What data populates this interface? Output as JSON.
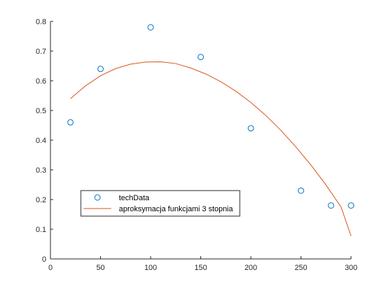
{
  "chart_data": {
    "type": "scatter",
    "title": "",
    "xlabel": "",
    "ylabel": "",
    "xlim": [
      0,
      300
    ],
    "ylim": [
      0,
      0.8
    ],
    "xticks": [
      0,
      50,
      100,
      150,
      200,
      250,
      300
    ],
    "yticks": [
      0,
      0.1,
      0.2,
      0.3,
      0.4,
      0.5,
      0.6,
      0.7,
      0.8
    ],
    "xtick_labels": [
      "0",
      "50",
      "100",
      "150",
      "200",
      "250",
      "300"
    ],
    "ytick_labels": [
      "0",
      "0.1",
      "0.2",
      "0.3",
      "0.4",
      "0.5",
      "0.6",
      "0.7",
      "0.8"
    ],
    "grid": false,
    "legend_position": "bottom-left",
    "series": [
      {
        "name": "techData",
        "type": "scatter",
        "marker": "circle-open",
        "color": "#0072BD",
        "x": [
          20,
          50,
          100,
          150,
          200,
          250,
          280,
          300
        ],
        "y": [
          0.46,
          0.64,
          0.78,
          0.68,
          0.44,
          0.23,
          0.18,
          0.18
        ]
      },
      {
        "name": "aproksymacja funkcjami 3 stopnia",
        "type": "line",
        "color": "#D95319",
        "x": [
          20,
          35,
          50,
          65,
          80,
          95,
          110,
          125,
          140,
          155,
          170,
          185,
          200,
          215,
          230,
          245,
          260,
          275,
          290,
          300
        ],
        "y": [
          0.54,
          0.583,
          0.617,
          0.641,
          0.656,
          0.663,
          0.664,
          0.658,
          0.643,
          0.623,
          0.597,
          0.565,
          0.527,
          0.483,
          0.433,
          0.377,
          0.316,
          0.249,
          0.175,
          0.077
        ]
      }
    ]
  }
}
